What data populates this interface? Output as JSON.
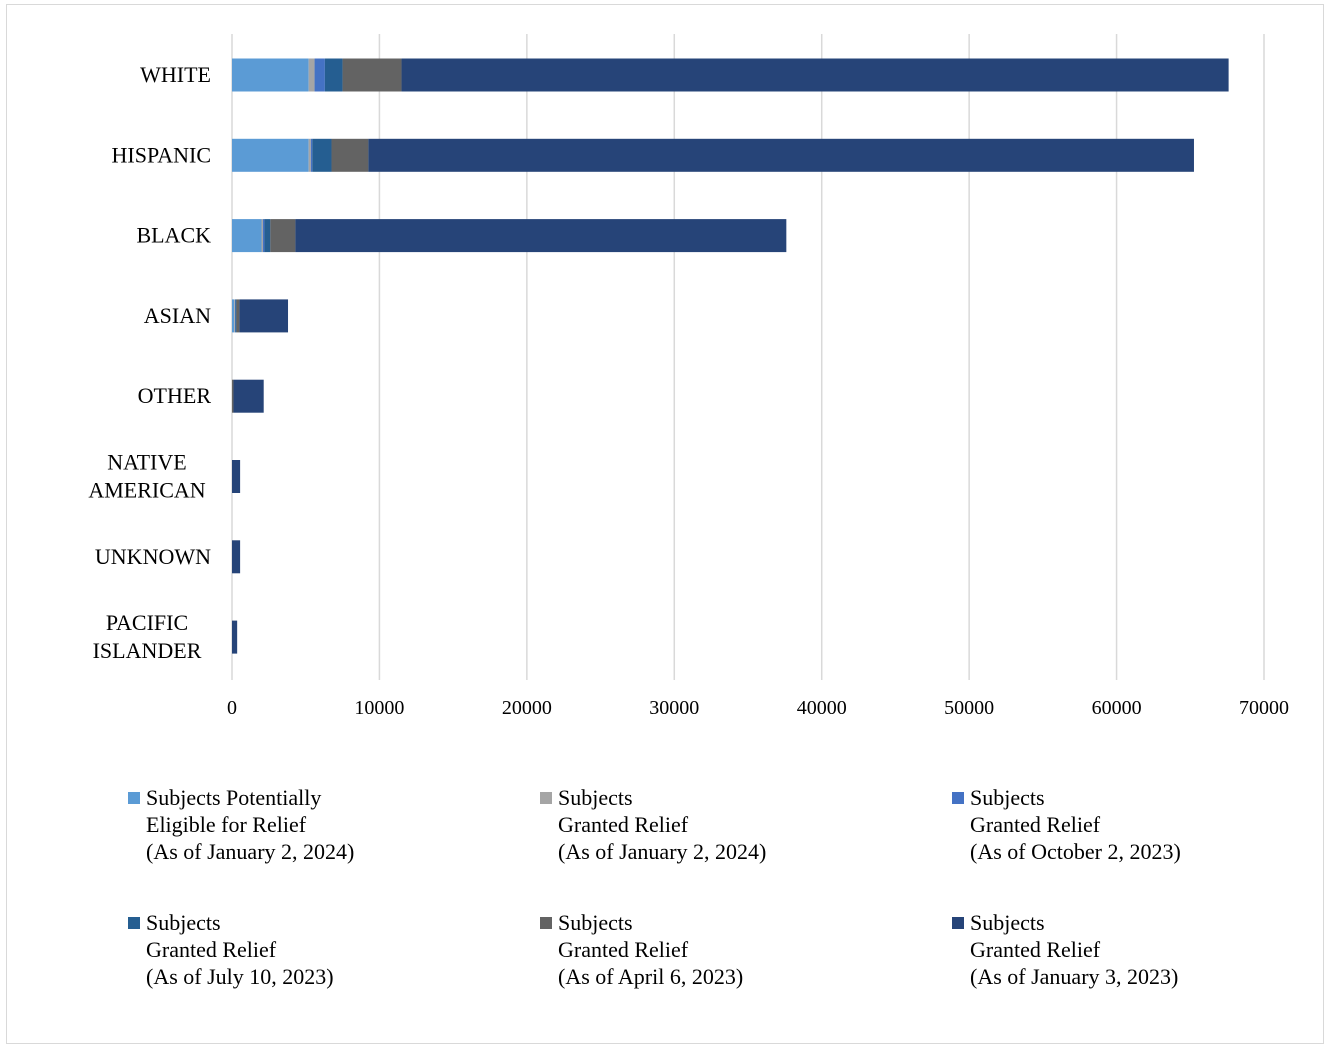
{
  "chart_data": {
    "type": "bar",
    "orientation": "horizontal",
    "stacked": true,
    "categories": [
      "WHITE",
      "HISPANIC",
      "BLACK",
      "ASIAN",
      "OTHER",
      "NATIVE\nAMERICAN",
      "UNKNOWN",
      "PACIFIC\nISLANDER"
    ],
    "xlim": [
      0,
      70000
    ],
    "xticks": [
      0,
      10000,
      20000,
      30000,
      40000,
      50000,
      60000,
      70000
    ],
    "grid": true,
    "legend_position": "bottom",
    "series": [
      {
        "name": "Subjects Potentially\nEligible for Relief\n(As of January 2, 2024)",
        "color": "#5b9bd5",
        "values": [
          5200,
          5200,
          2000,
          150,
          0,
          0,
          0,
          0
        ]
      },
      {
        "name": "Subjects\nGranted Relief\n(As of January 2, 2024)",
        "color": "#a5a5a5",
        "values": [
          400,
          150,
          100,
          50,
          0,
          0,
          0,
          0
        ]
      },
      {
        "name": "Subjects\nGranted Relief\n(As of October 2, 2023)",
        "color": "#4472c4",
        "values": [
          700,
          100,
          100,
          30,
          0,
          0,
          0,
          0
        ]
      },
      {
        "name": "Subjects\nGranted Relief\n(As of July 10, 2023)",
        "color": "#255e91",
        "values": [
          1200,
          1300,
          400,
          70,
          0,
          0,
          0,
          0
        ]
      },
      {
        "name": "Subjects\nGranted Relief\n(As of April 6, 2023)",
        "color": "#636363",
        "values": [
          4000,
          2500,
          1700,
          200,
          100,
          0,
          0,
          0
        ]
      },
      {
        "name": "Subjects\nGranted Relief\n(As of January 3, 2023)",
        "color": "#264478",
        "values": [
          56100,
          56000,
          33300,
          3300,
          2050,
          550,
          550,
          350
        ]
      }
    ]
  }
}
